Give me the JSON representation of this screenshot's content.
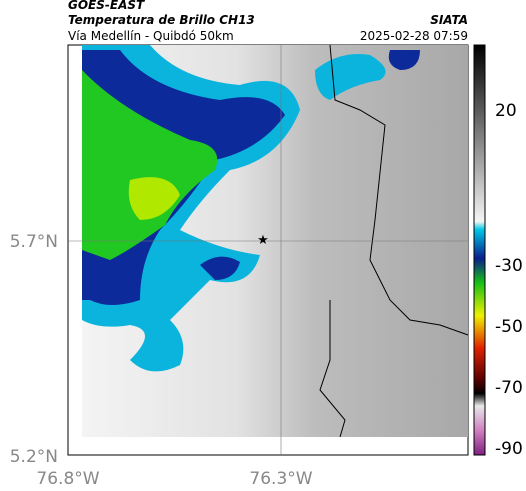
{
  "header": {
    "title": "GOES-EAST",
    "subtitle": "Temperatura de Brillo CH13",
    "region": "Vía Medellín - Quibdó 50km",
    "source": "SIATA",
    "timestamp": "2025-02-28 07:59"
  },
  "axes": {
    "lat_labels": [
      "5.7°N",
      "5.2°N"
    ],
    "lon_labels": [
      "76.8°W",
      "76.3°W"
    ]
  },
  "colorbar": {
    "tick_labels": [
      "20",
      "-30",
      "-50",
      "-70",
      "-90"
    ]
  }
}
